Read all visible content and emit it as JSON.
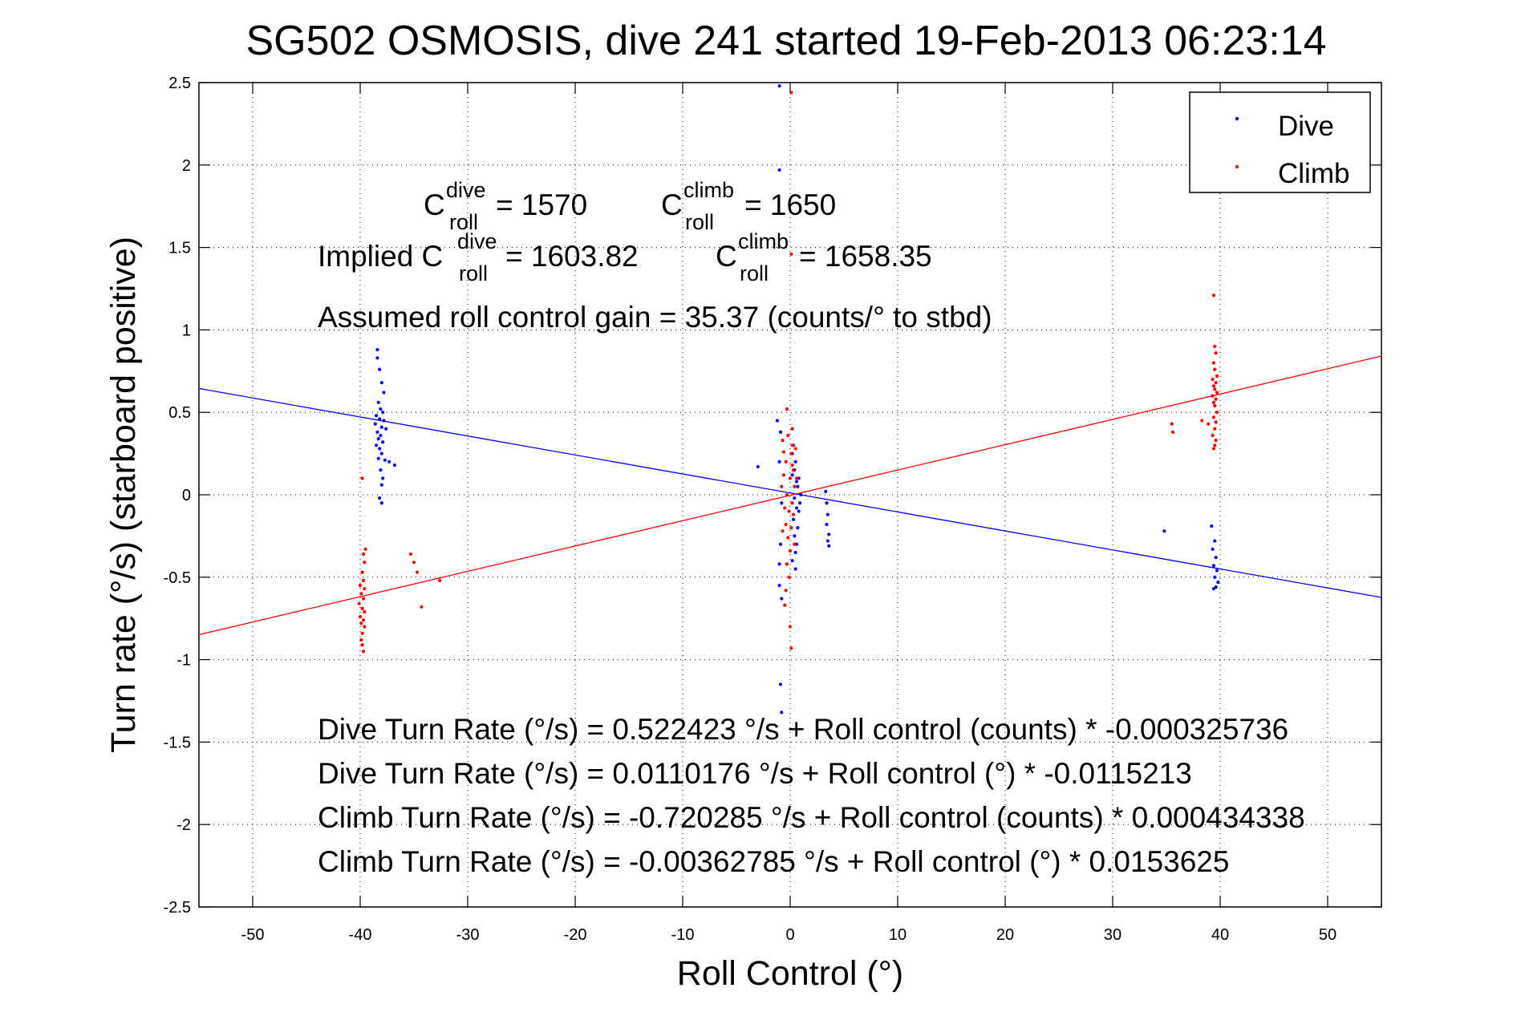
{
  "chart_data": {
    "type": "scatter",
    "title": "SG502 OSMOSIS, dive 241 started 19-Feb-2013 06:23:14",
    "xlabel": "Roll Control (°)",
    "ylabel": "Turn rate (°/s) (starboard positive)",
    "xlim": [
      -55,
      55
    ],
    "ylim": [
      -2.5,
      2.5
    ],
    "xticks": [
      -50,
      -40,
      -30,
      -20,
      -10,
      0,
      10,
      20,
      30,
      40,
      50
    ],
    "xtick_labels": [
      "-50",
      "-40",
      "-30",
      "-20",
      "-10",
      "0",
      "10",
      "20",
      "30",
      "40",
      "50"
    ],
    "yticks": [
      -2.5,
      -2,
      -1.5,
      -1,
      -0.5,
      0,
      0.5,
      1,
      1.5,
      2,
      2.5
    ],
    "ytick_labels": [
      "-2.5",
      "-2",
      "-1.5",
      "-1",
      "-0.5",
      "0",
      "0.5",
      "1",
      "1.5",
      "2",
      "2.5"
    ],
    "grid": true,
    "legend_position": "top-right",
    "colors": {
      "dive": "#0000ff",
      "climb": "#ff0000"
    },
    "series": [
      {
        "name": "Dive",
        "points": [
          [
            -38.4,
            0.88
          ],
          [
            -38.4,
            0.83
          ],
          [
            -38.2,
            0.76
          ],
          [
            -38.0,
            0.68
          ],
          [
            -37.8,
            0.62
          ],
          [
            -38.3,
            0.56
          ],
          [
            -38.1,
            0.52
          ],
          [
            -37.9,
            0.5
          ],
          [
            -38.5,
            0.48
          ],
          [
            -38.2,
            0.46
          ],
          [
            -37.8,
            0.45
          ],
          [
            -38.6,
            0.43
          ],
          [
            -38.0,
            0.41
          ],
          [
            -37.6,
            0.4
          ],
          [
            -38.4,
            0.38
          ],
          [
            -38.1,
            0.36
          ],
          [
            -38.3,
            0.34
          ],
          [
            -37.9,
            0.32
          ],
          [
            -38.5,
            0.3
          ],
          [
            -38.2,
            0.28
          ],
          [
            -38.0,
            0.25
          ],
          [
            -38.3,
            0.22
          ],
          [
            -37.7,
            0.21
          ],
          [
            -37.3,
            0.2
          ],
          [
            -36.8,
            0.18
          ],
          [
            -38.1,
            0.15
          ],
          [
            -37.9,
            0.1
          ],
          [
            -38.0,
            0.06
          ],
          [
            -38.2,
            -0.02
          ],
          [
            -38.0,
            -0.05
          ],
          [
            -3.0,
            0.17
          ],
          [
            -1.2,
            0.45
          ],
          [
            -0.9,
            0.38
          ],
          [
            -1.0,
            0.2
          ],
          [
            -0.8,
            -0.05
          ],
          [
            -0.9,
            -0.3
          ],
          [
            -1.0,
            -0.42
          ],
          [
            -1.0,
            -0.55
          ],
          [
            -0.8,
            -0.63
          ],
          [
            -0.9,
            -1.15
          ],
          [
            -0.8,
            -1.32
          ],
          [
            -1.0,
            1.97
          ],
          [
            -1.0,
            2.48
          ],
          [
            0.2,
            0.12
          ],
          [
            0.4,
            -0.02
          ],
          [
            0.6,
            0.08
          ],
          [
            0.8,
            -0.1
          ],
          [
            0.3,
            -0.15
          ],
          [
            0.5,
            0.2
          ],
          [
            0.7,
            0.05
          ],
          [
            0.4,
            -0.25
          ],
          [
            0.6,
            -0.3
          ],
          [
            0.2,
            0.25
          ],
          [
            0.9,
            -0.05
          ],
          [
            0.5,
            -0.35
          ],
          [
            0.3,
            0.3
          ],
          [
            0.7,
            -0.2
          ],
          [
            1.0,
            0.0
          ],
          [
            0.4,
            0.15
          ],
          [
            0.6,
            -0.08
          ],
          [
            0.8,
            0.1
          ],
          [
            0.2,
            -0.4
          ],
          [
            0.5,
            -0.45
          ],
          [
            3.3,
            0.02
          ],
          [
            3.4,
            -0.05
          ],
          [
            3.5,
            -0.12
          ],
          [
            3.4,
            -0.18
          ],
          [
            3.6,
            -0.24
          ],
          [
            3.5,
            -0.28
          ],
          [
            3.6,
            -0.31
          ],
          [
            34.8,
            -0.22
          ],
          [
            39.2,
            -0.19
          ],
          [
            39.5,
            -0.28
          ],
          [
            39.3,
            -0.33
          ],
          [
            39.6,
            -0.38
          ],
          [
            39.4,
            -0.43
          ],
          [
            39.7,
            -0.46
          ],
          [
            39.5,
            -0.5
          ],
          [
            39.8,
            -0.53
          ],
          [
            39.6,
            -0.56
          ],
          [
            39.4,
            -0.57
          ]
        ]
      },
      {
        "name": "Climb",
        "points": [
          [
            -39.8,
            0.1
          ],
          [
            -39.5,
            -0.33
          ],
          [
            -39.7,
            -0.36
          ],
          [
            -39.6,
            -0.41
          ],
          [
            -39.8,
            -0.47
          ],
          [
            -39.7,
            -0.52
          ],
          [
            -40.0,
            -0.55
          ],
          [
            -39.6,
            -0.57
          ],
          [
            -39.9,
            -0.6
          ],
          [
            -39.7,
            -0.63
          ],
          [
            -40.1,
            -0.66
          ],
          [
            -39.8,
            -0.69
          ],
          [
            -39.6,
            -0.71
          ],
          [
            -40.0,
            -0.74
          ],
          [
            -39.7,
            -0.76
          ],
          [
            -39.9,
            -0.78
          ],
          [
            -39.6,
            -0.8
          ],
          [
            -39.8,
            -0.84
          ],
          [
            -39.9,
            -0.88
          ],
          [
            -39.8,
            -0.91
          ],
          [
            -39.7,
            -0.95
          ],
          [
            -35.3,
            -0.36
          ],
          [
            -35.0,
            -0.41
          ],
          [
            -34.7,
            -0.47
          ],
          [
            -34.3,
            -0.68
          ],
          [
            -32.6,
            -0.52
          ],
          [
            -0.3,
            0.52
          ],
          [
            -0.2,
            0.36
          ],
          [
            -0.4,
            0.2
          ],
          [
            0.0,
            0.1
          ],
          [
            -0.3,
            0.0
          ],
          [
            -0.1,
            -0.1
          ],
          [
            -0.4,
            -0.18
          ],
          [
            -0.2,
            -0.26
          ],
          [
            0.0,
            -0.34
          ],
          [
            -0.3,
            -0.42
          ],
          [
            -0.1,
            -0.5
          ],
          [
            -0.4,
            -0.58
          ],
          [
            -0.5,
            -0.67
          ],
          [
            0.0,
            -0.8
          ],
          [
            0.1,
            -0.93
          ],
          [
            0.1,
            2.44
          ],
          [
            0.1,
            1.46
          ],
          [
            0.2,
            0.3
          ],
          [
            0.1,
            0.25
          ],
          [
            0.3,
            0.15
          ],
          [
            0.2,
            -0.05
          ],
          [
            0.4,
            0.05
          ],
          [
            0.1,
            -0.2
          ],
          [
            0.3,
            -0.12
          ],
          [
            0.2,
            0.4
          ],
          [
            0.5,
            0.28
          ],
          [
            0.4,
            -0.3
          ],
          [
            0.6,
            0.1
          ],
          [
            0.2,
            0.18
          ],
          [
            -0.6,
            0.12
          ],
          [
            -0.5,
            -0.08
          ],
          [
            -0.6,
            0.26
          ],
          [
            -0.7,
            -0.22
          ],
          [
            -0.8,
            0.05
          ],
          [
            -0.7,
            0.33
          ],
          [
            35.5,
            0.43
          ],
          [
            35.6,
            0.38
          ],
          [
            38.3,
            0.45
          ],
          [
            38.9,
            0.43
          ],
          [
            39.4,
            1.21
          ],
          [
            39.5,
            0.9
          ],
          [
            39.6,
            0.86
          ],
          [
            39.4,
            0.8
          ],
          [
            39.5,
            0.76
          ],
          [
            39.7,
            0.72
          ],
          [
            39.3,
            0.7
          ],
          [
            39.6,
            0.68
          ],
          [
            39.4,
            0.66
          ],
          [
            39.5,
            0.64
          ],
          [
            39.7,
            0.62
          ],
          [
            39.3,
            0.6
          ],
          [
            39.6,
            0.58
          ],
          [
            39.4,
            0.56
          ],
          [
            39.5,
            0.54
          ],
          [
            39.7,
            0.5
          ],
          [
            39.4,
            0.47
          ],
          [
            39.6,
            0.44
          ],
          [
            39.5,
            0.4
          ],
          [
            39.3,
            0.36
          ],
          [
            39.6,
            0.33
          ],
          [
            39.5,
            0.3
          ],
          [
            39.4,
            0.28
          ]
        ]
      }
    ],
    "fit_lines": [
      {
        "series": "Dive",
        "intercept": 0.0110176,
        "slope": -0.0115213
      },
      {
        "series": "Climb",
        "intercept": -0.00362785,
        "slope": 0.0153625
      }
    ],
    "annotations": {
      "c_dive_prefix": "C",
      "c_dive_sup": "dive",
      "c_dive_sub": "roll",
      "c_dive_value": " = 1570",
      "c_climb_prefix": "C",
      "c_climb_sup": "climb",
      "c_climb_sub": "roll",
      "c_climb_value": " = 1650",
      "implied_prefix": "Implied C",
      "implied_dive_sup": "dive",
      "implied_dive_sub": "roll",
      "implied_dive_value": " = 1603.82",
      "implied_climb_prefix": "C",
      "implied_climb_sup": "climb",
      "implied_climb_sub": "roll",
      "implied_climb_value": " = 1658.35",
      "gain": "Assumed roll control gain = 35.37 (counts/° to stbd)",
      "eq1": "Dive Turn Rate (°/s) = 0.522423 °/s + Roll control (counts) * -0.000325736",
      "eq2": "Dive Turn Rate (°/s) = 0.0110176 °/s + Roll control (°) * -0.0115213",
      "eq3": "Climb Turn Rate (°/s) = -0.720285 °/s + Roll control (counts) * 0.000434338",
      "eq4": "Climb Turn Rate (°/s) = -0.00362785 °/s + Roll control (°) * 0.0153625"
    }
  }
}
